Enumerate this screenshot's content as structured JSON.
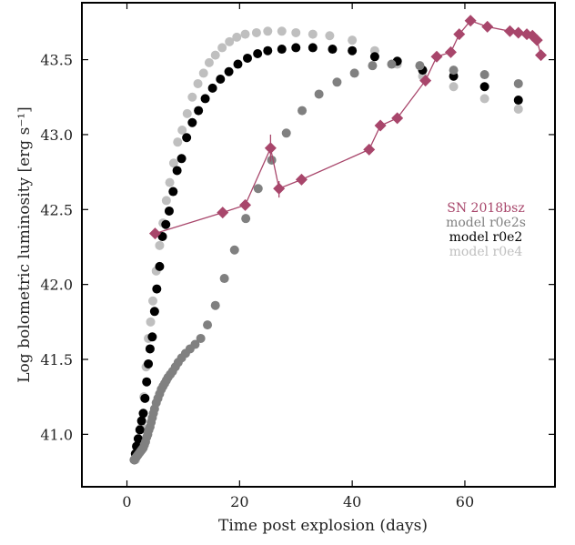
{
  "chart_data": {
    "type": "scatter",
    "xlabel": "Time post explosion (days)",
    "ylabel": "Log bolometric luminosity [erg s⁻¹]",
    "xlim": [
      -8,
      76
    ],
    "ylim": [
      40.65,
      43.88
    ],
    "x_ticks": [
      0,
      20,
      40,
      60
    ],
    "x_tick_labels": [
      "0",
      "20",
      "40",
      "60"
    ],
    "y_ticks": [
      41.0,
      41.5,
      42.0,
      42.5,
      43.0,
      43.5
    ],
    "y_tick_labels": [
      "41.0",
      "41.5",
      "42.0",
      "42.5",
      "43.0",
      "43.5"
    ],
    "grid": false,
    "legend_position": "center-right",
    "series": [
      {
        "name": "model r0e4",
        "color": "#bfbfbf",
        "marker": "circle",
        "x": [
          1.5,
          1.8,
          2.2,
          2.6,
          3.0,
          3.4,
          3.8,
          4.2,
          4.6,
          5.2,
          5.8,
          6.4,
          7.0,
          7.6,
          8.3,
          9.0,
          9.8,
          10.7,
          11.6,
          12.6,
          13.6,
          14.6,
          15.7,
          16.9,
          18.2,
          19.5,
          21.0,
          23.0,
          25.0,
          27.5,
          30.0,
          33.0,
          36.0,
          40.0,
          44.0,
          48.0,
          52.5,
          58.0,
          63.5,
          69.5
        ],
        "y": [
          40.83,
          40.86,
          40.93,
          41.05,
          41.25,
          41.45,
          41.64,
          41.75,
          41.89,
          42.09,
          42.26,
          42.41,
          42.56,
          42.68,
          42.81,
          42.95,
          43.03,
          43.14,
          43.25,
          43.34,
          43.41,
          43.48,
          43.53,
          43.58,
          43.62,
          43.65,
          43.67,
          43.68,
          43.69,
          43.69,
          43.68,
          43.67,
          43.66,
          43.63,
          43.56,
          43.47,
          43.39,
          43.32,
          43.24,
          43.17
        ]
      },
      {
        "name": "model r0e2",
        "color": "#000000",
        "marker": "circle",
        "x": [
          1.3,
          1.5,
          1.7,
          2.0,
          2.3,
          2.6,
          2.9,
          3.2,
          3.5,
          3.8,
          4.1,
          4.5,
          4.9,
          5.3,
          5.8,
          6.3,
          6.9,
          7.5,
          8.2,
          8.9,
          9.7,
          10.6,
          11.6,
          12.7,
          13.9,
          15.2,
          16.6,
          18.1,
          19.7,
          21.4,
          23.2,
          25.0,
          27.5,
          30.0,
          33.0,
          36.5,
          40.0,
          44.0,
          48.0,
          52.5,
          58.0,
          63.5,
          69.5
        ],
        "y": [
          40.83,
          40.87,
          40.92,
          40.97,
          41.03,
          41.09,
          41.14,
          41.24,
          41.35,
          41.47,
          41.57,
          41.65,
          41.82,
          41.97,
          42.12,
          42.32,
          42.4,
          42.49,
          42.62,
          42.76,
          42.84,
          42.98,
          43.08,
          43.16,
          43.24,
          43.31,
          43.37,
          43.42,
          43.47,
          43.51,
          43.54,
          43.56,
          43.57,
          43.58,
          43.58,
          43.57,
          43.56,
          43.52,
          43.49,
          43.43,
          43.39,
          43.32,
          43.23
        ]
      },
      {
        "name": "model r0e2s",
        "color": "#808080",
        "marker": "circle",
        "x": [
          1.3,
          1.5,
          1.7,
          1.9,
          2.1,
          2.3,
          2.5,
          2.7,
          2.9,
          3.1,
          3.3,
          3.5,
          3.7,
          3.9,
          4.1,
          4.3,
          4.5,
          4.7,
          4.9,
          5.2,
          5.5,
          5.8,
          6.1,
          6.4,
          6.7,
          7.0,
          7.3,
          7.7,
          8.1,
          8.6,
          9.1,
          9.7,
          10.4,
          11.2,
          12.1,
          13.1,
          14.3,
          15.7,
          17.3,
          19.1,
          21.1,
          23.3,
          25.7,
          28.3,
          31.1,
          34.1,
          37.3,
          40.4,
          43.6,
          47.0,
          52.0,
          58.0,
          63.5,
          69.5
        ],
        "y": [
          40.83,
          40.84,
          40.85,
          40.86,
          40.87,
          40.88,
          40.89,
          40.9,
          40.91,
          40.93,
          40.95,
          40.98,
          41.0,
          41.03,
          41.05,
          41.08,
          41.11,
          41.14,
          41.17,
          41.21,
          41.24,
          41.27,
          41.3,
          41.32,
          41.34,
          41.36,
          41.38,
          41.4,
          41.42,
          41.45,
          41.48,
          41.51,
          41.54,
          41.57,
          41.6,
          41.64,
          41.73,
          41.86,
          42.04,
          42.23,
          42.44,
          42.64,
          42.83,
          43.01,
          43.16,
          43.27,
          43.35,
          43.41,
          43.46,
          43.47,
          43.46,
          43.43,
          43.4,
          43.34
        ]
      },
      {
        "name": "SN 2018bsz",
        "color": "#a8466b",
        "marker": "diamond",
        "connected": true,
        "x": [
          5.0,
          17.0,
          21.0,
          25.5,
          27.0,
          31.0,
          43.0,
          45.0,
          48.0,
          53.0,
          55.0,
          57.5,
          59.0,
          61.0,
          64.0,
          68.0,
          69.5,
          71.0,
          72.0,
          72.8,
          73.5
        ],
        "y": [
          42.34,
          42.48,
          42.53,
          42.91,
          42.64,
          42.7,
          42.9,
          43.06,
          43.11,
          43.36,
          43.52,
          43.55,
          43.67,
          43.76,
          43.72,
          43.69,
          43.68,
          43.67,
          43.66,
          43.63,
          43.53
        ],
        "error_bars": [
          {
            "x": 25.5,
            "y_low": 42.82,
            "y_high": 43.0
          },
          {
            "x": 27.0,
            "y_low": 42.58,
            "y_high": 42.69
          }
        ]
      }
    ],
    "legend_entries": [
      "SN 2018bsz",
      "model r0e2s",
      "model r0e2",
      "model r0e4"
    ]
  }
}
